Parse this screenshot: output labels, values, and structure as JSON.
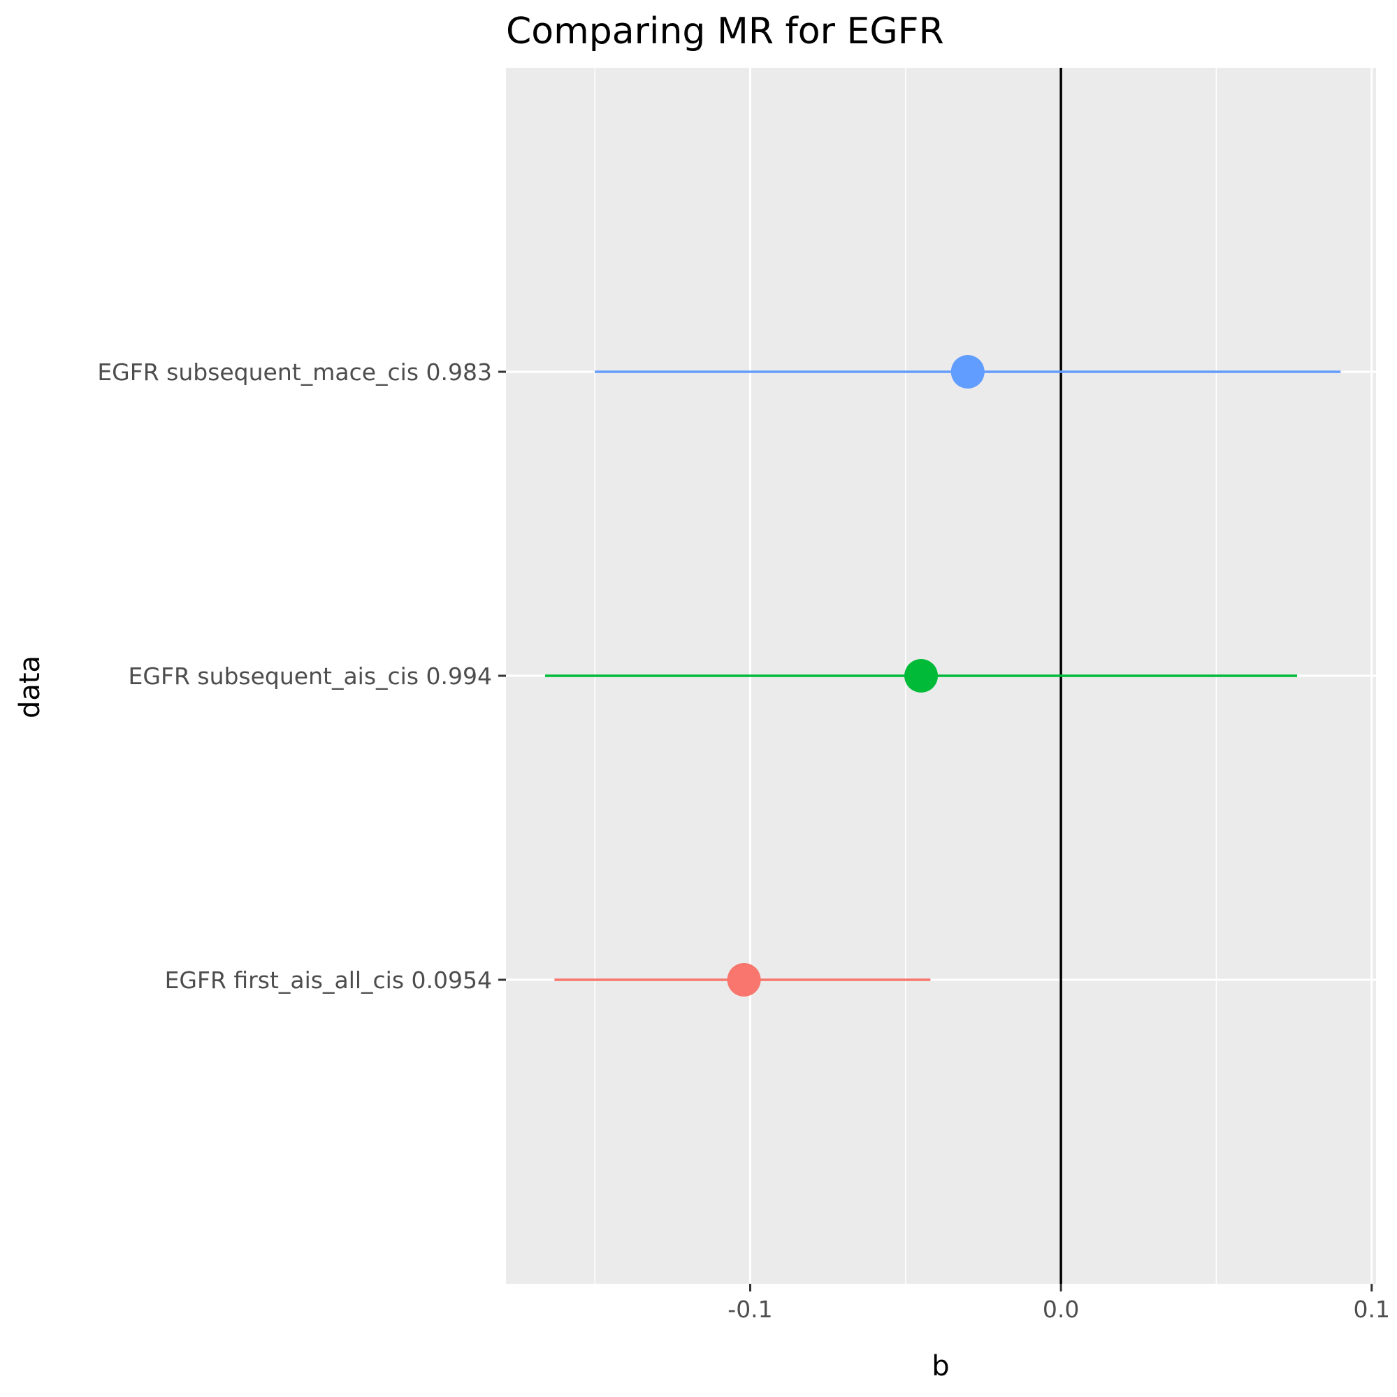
{
  "chart_data": {
    "type": "scatter",
    "title": "Comparing MR for EGFR",
    "xlabel": "b",
    "ylabel": "data",
    "xlim": [
      -0.1786,
      0.1014
    ],
    "x_ticks": [
      {
        "value": -0.1,
        "label": "-0.1"
      },
      {
        "value": 0.0,
        "label": "0.0"
      },
      {
        "value": 0.1,
        "label": "0.1"
      }
    ],
    "reference_line_x": 0,
    "grid": true,
    "legend": "none",
    "points": [
      {
        "label": "EGFR first_ais_all_cis 0.0954",
        "b": -0.102,
        "lo": -0.163,
        "hi": -0.042,
        "color": "#F8766D"
      },
      {
        "label": "EGFR subsequent_ais_cis 0.994",
        "b": -0.045,
        "lo": -0.166,
        "hi": 0.076,
        "color": "#00BA38"
      },
      {
        "label": "EGFR subsequent_mace_cis 0.983",
        "b": -0.03,
        "lo": -0.15,
        "hi": 0.09,
        "color": "#619CFF"
      }
    ]
  }
}
